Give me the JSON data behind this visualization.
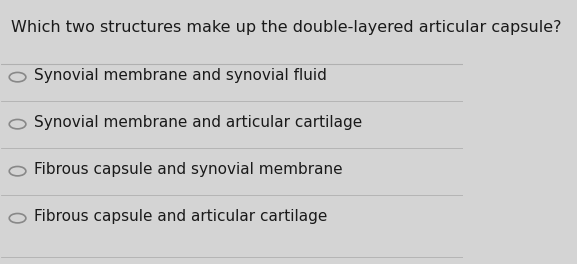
{
  "question": "Which two structures make up the double-layered articular capsule?",
  "options": [
    "Synovial membrane and synovial fluid",
    "Synovial membrane and articular cartilage",
    "Fibrous capsule and synovial membrane",
    "Fibrous capsule and articular cartilage"
  ],
  "bg_color": "#d4d4d4",
  "question_color": "#1a1a1a",
  "option_color": "#1a1a1a",
  "line_color": "#b0b0b0",
  "question_fontsize": 11.5,
  "option_fontsize": 11.0,
  "circle_color": "#888888",
  "panel_bg": "#e0e0e0"
}
